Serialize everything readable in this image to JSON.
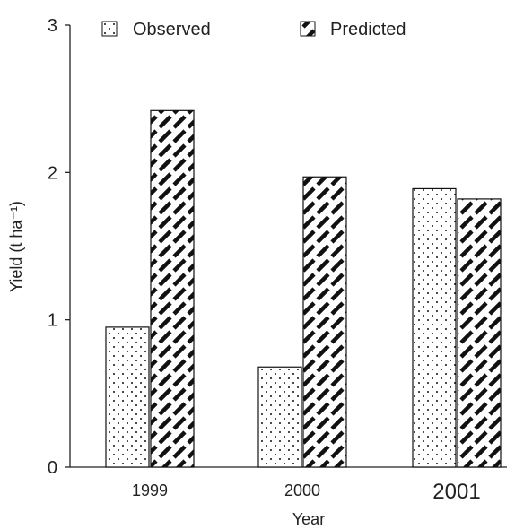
{
  "chart_data": {
    "type": "bar",
    "categories": [
      "1999",
      "2000",
      "2001"
    ],
    "series": [
      {
        "name": "Observed",
        "values": [
          0.95,
          0.68,
          1.89
        ],
        "pattern": "dots"
      },
      {
        "name": "Predicted",
        "values": [
          2.42,
          1.97,
          1.82
        ],
        "pattern": "diagonal-stripes"
      }
    ],
    "xlabel": "Year",
    "ylabel": "Yield (t ha⁻¹)",
    "ylim": [
      0,
      3
    ],
    "yticks": [
      0,
      1,
      2,
      3
    ],
    "grid": false,
    "legend_position": "top",
    "colors": {
      "axis": "#222222",
      "ink": "#111111",
      "background": "#ffffff"
    }
  }
}
